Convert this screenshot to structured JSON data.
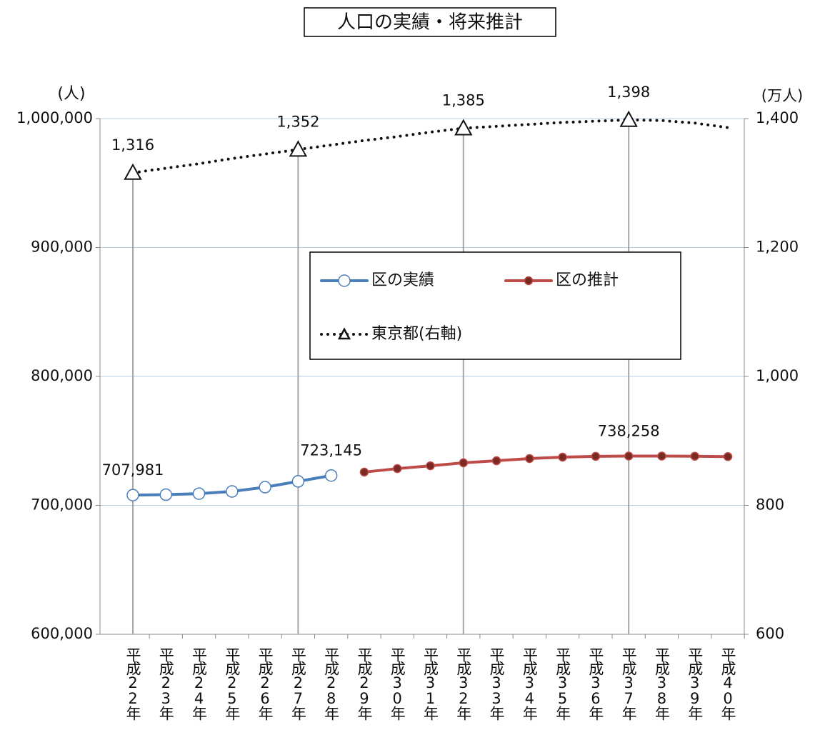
{
  "chart_data": {
    "type": "line",
    "title": "人口の実績・将来推計",
    "y_label": "(人)",
    "y2_label": "(万人)",
    "categories": [
      "平成22年",
      "平成23年",
      "平成24年",
      "平成25年",
      "平成26年",
      "平成27年",
      "平成28年",
      "平成29年",
      "平成30年",
      "平成31年",
      "平成32年",
      "平成33年",
      "平成34年",
      "平成35年",
      "平成36年",
      "平成37年",
      "平成38年",
      "平成39年",
      "平成40年"
    ],
    "ylim": [
      600000,
      1000000
    ],
    "yticks": [
      {
        "value": 600000,
        "label": "600,000"
      },
      {
        "value": 700000,
        "label": "700,000"
      },
      {
        "value": 800000,
        "label": "800,000"
      },
      {
        "value": 900000,
        "label": "900,000"
      },
      {
        "value": 1000000,
        "label": "1,000,000"
      }
    ],
    "y2lim": [
      600,
      1400
    ],
    "y2ticks": [
      600,
      800,
      {
        "value": 1000,
        "label": "1,000"
      },
      {
        "value": 1200,
        "label": "1,200"
      },
      {
        "value": 1400,
        "label": "1,400"
      }
    ],
    "grid": true,
    "series": [
      {
        "name": "区の実績",
        "color": "#4a7ebb",
        "marker": "open-circle",
        "values": [
          707981,
          708300,
          709100,
          710800,
          714100,
          718600,
          723145,
          null,
          null,
          null,
          null,
          null,
          null,
          null,
          null,
          null,
          null,
          null,
          null
        ],
        "value_labels": [
          "707,981",
          null,
          null,
          null,
          null,
          null,
          "723,145",
          null,
          null,
          null,
          null,
          null,
          null,
          null,
          null,
          null,
          null,
          null,
          null
        ]
      },
      {
        "name": "区の推計",
        "color": "#be4b48",
        "marker": "dot",
        "values": [
          null,
          null,
          null,
          null,
          null,
          null,
          null,
          725800,
          728500,
          730700,
          733000,
          734600,
          736300,
          737400,
          738000,
          738258,
          738200,
          738100,
          737800
        ],
        "value_labels": [
          null,
          null,
          null,
          null,
          null,
          null,
          null,
          null,
          null,
          null,
          null,
          null,
          null,
          null,
          null,
          "738,258",
          null,
          null,
          null
        ]
      },
      {
        "name": "東京都(右軸)",
        "color": "#111111",
        "marker": "triangle",
        "axis": "y2",
        "dash": "dotted",
        "values": [
          1316,
          1323,
          1330,
          1338,
          1345,
          1352,
          1359,
          1366,
          1372,
          1379,
          1385,
          1388,
          1391,
          1394,
          1396,
          1398,
          1397,
          1393,
          1386
        ],
        "value_labels": [
          "1,316",
          null,
          null,
          null,
          null,
          "1,352",
          null,
          null,
          null,
          null,
          "1,385",
          null,
          null,
          null,
          null,
          "1,398",
          null,
          null,
          null
        ]
      }
    ]
  }
}
